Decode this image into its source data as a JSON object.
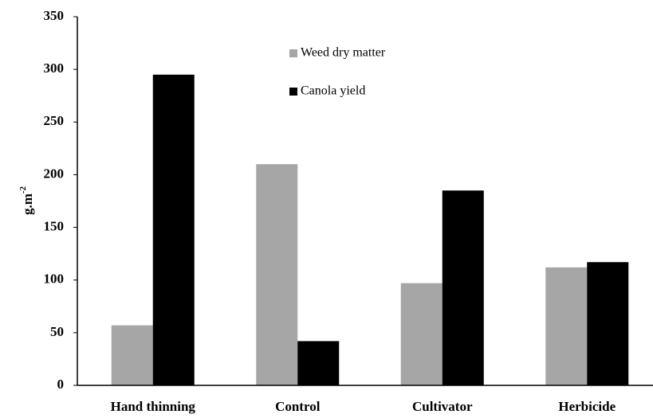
{
  "chart_data": {
    "type": "bar",
    "ylabel": "g.m",
    "ylabel_superscript": "-2",
    "categories": [
      "Hand thinning",
      "Control",
      "Cultivator",
      "Herbicide"
    ],
    "series": [
      {
        "name": "Weed dry matter",
        "color": "#a6a6a6",
        "values": [
          57,
          210,
          97,
          112
        ]
      },
      {
        "name": "Canola yield",
        "color": "#000000",
        "values": [
          295,
          42,
          185,
          117
        ]
      }
    ],
    "ylim": [
      0,
      350
    ],
    "yticks": [
      0,
      50,
      100,
      150,
      200,
      250,
      300,
      350
    ],
    "grid": false
  }
}
